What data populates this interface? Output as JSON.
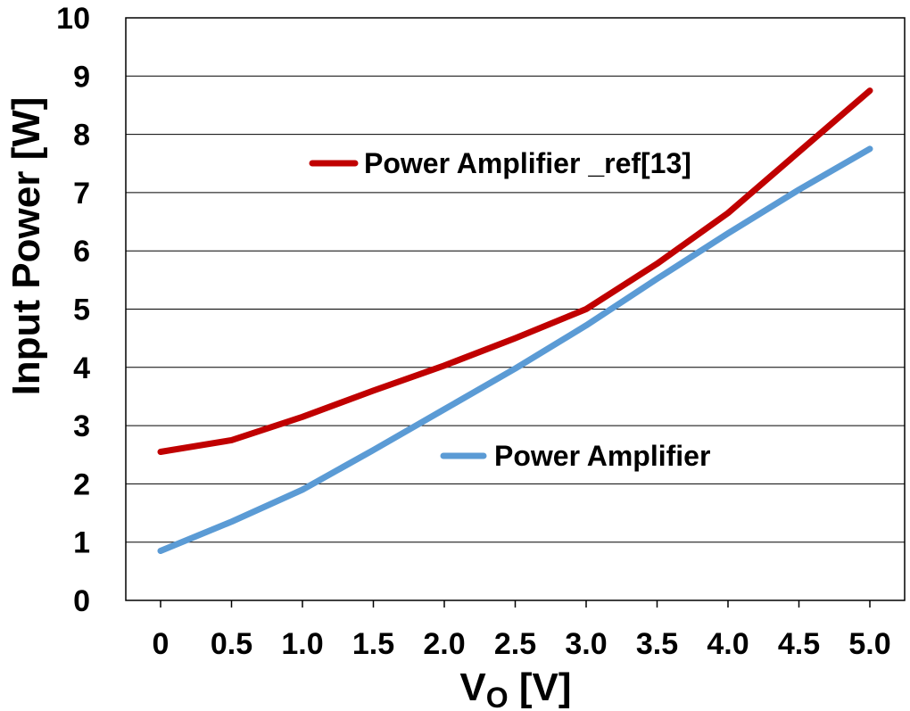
{
  "chart_data": {
    "type": "line",
    "xlabel": "V",
    "xlabel_sub": "O",
    "xlabel_unit": " [V]",
    "ylabel": "Input Power [W]",
    "x": [
      "0",
      "0.5",
      "1.0",
      "1.5",
      "2.0",
      "2.5",
      "3.0",
      "3.5",
      "4.0",
      "4.5",
      "5.0"
    ],
    "x_values": [
      0,
      0.5,
      1.0,
      1.5,
      2.0,
      2.5,
      3.0,
      3.5,
      4.0,
      4.5,
      5.0
    ],
    "ylim": [
      0,
      10
    ],
    "yticks": [
      "0",
      "1",
      "2",
      "3",
      "4",
      "5",
      "6",
      "7",
      "8",
      "9",
      "10"
    ],
    "grid": true,
    "series": [
      {
        "name": "Power Amplifier _ref[13]",
        "color": "#c00000",
        "values": [
          2.55,
          2.75,
          3.15,
          3.6,
          4.03,
          4.5,
          5.0,
          5.78,
          6.65,
          7.7,
          8.75
        ]
      },
      {
        "name": "Power Amplifier",
        "color": "#5b9bd5",
        "values": [
          0.85,
          1.35,
          1.9,
          2.58,
          3.28,
          3.98,
          4.72,
          5.52,
          6.3,
          7.05,
          7.75
        ]
      }
    ]
  }
}
